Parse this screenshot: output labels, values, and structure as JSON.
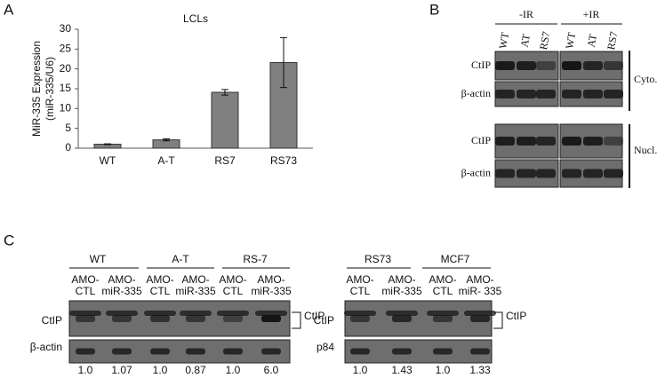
{
  "chart_data": {
    "type": "bar",
    "title": "LCLs",
    "y_label": [
      "MiR-335 Expression",
      "(miR-335/U6)"
    ],
    "categories": [
      "WT",
      "A-T",
      "RS7",
      "RS73"
    ],
    "values": [
      1.0,
      2.1,
      14.1,
      21.6
    ],
    "errors": [
      0.1,
      0.25,
      0.7,
      6.3
    ],
    "color": "#808080",
    "ylim": [
      0,
      30
    ],
    "yticks": [
      0,
      5,
      10,
      15,
      20,
      25,
      30
    ]
  },
  "panel_labels": [
    "A",
    "B",
    "C"
  ],
  "panel_b": {
    "conditions": [
      "-IR",
      "+IR"
    ],
    "lanes": [
      "WT",
      "AT",
      "RS7",
      "WT",
      "AT",
      "RS7"
    ],
    "rows": [
      "CtIP",
      "β-actin",
      "CtIP",
      "β-actin"
    ],
    "fractions": [
      "Cyto.",
      "Nucl."
    ]
  },
  "panel_c_left": {
    "groups": [
      "WT",
      "A-T",
      "RS-7"
    ],
    "lanes": [
      [
        "AMO-",
        "CTL"
      ],
      [
        "AMO-",
        "miR-335"
      ],
      [
        "AMO-",
        "CTL"
      ],
      [
        "AMO-",
        "miR-335"
      ],
      [
        "AMO-",
        "CTL"
      ],
      [
        "AMO-",
        "miR-335"
      ]
    ],
    "rows": [
      "CtIP",
      "β-actin"
    ],
    "band_label": "CtIP",
    "quantification": [
      "1.0",
      "1.07",
      "1.0",
      "0.87",
      "1.0",
      "6.0"
    ]
  },
  "panel_c_right": {
    "groups": [
      "RS73",
      "MCF7"
    ],
    "lanes": [
      [
        "AMO-",
        "CTL"
      ],
      [
        "AMO-",
        "miR-335"
      ],
      [
        "AMO-",
        "CTL"
      ],
      [
        "AMO-",
        "miR- 335"
      ]
    ],
    "rows": [
      "CtIP",
      "p84"
    ],
    "band_label": "CtIP",
    "quantification": [
      "1.0",
      "1.43",
      "1.0",
      "1.33"
    ]
  }
}
